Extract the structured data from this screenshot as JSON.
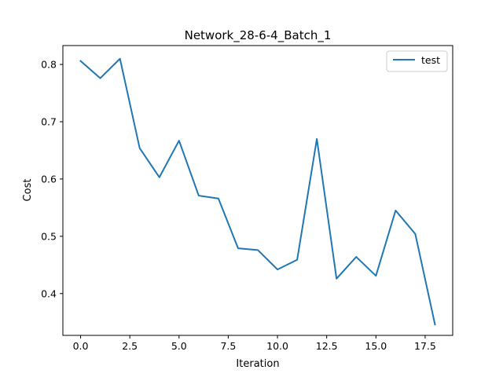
{
  "chart_data": {
    "type": "line",
    "title": "Network_28-6-4_Batch_1",
    "xlabel": "Iteration",
    "ylabel": "Cost",
    "xlim": [
      -0.9,
      18.9
    ],
    "ylim": [
      0.327,
      0.833
    ],
    "x_ticks": [
      0.0,
      2.5,
      5.0,
      7.5,
      10.0,
      12.5,
      15.0,
      17.5
    ],
    "x_tick_labels": [
      "0.0",
      "2.5",
      "5.0",
      "7.5",
      "10.0",
      "12.5",
      "15.0",
      "17.5"
    ],
    "y_ticks": [
      0.4,
      0.5,
      0.6,
      0.7,
      0.8
    ],
    "y_tick_labels": [
      "0.4",
      "0.5",
      "0.6",
      "0.7",
      "0.8"
    ],
    "grid": false,
    "legend_position": "top-right",
    "series": [
      {
        "name": "test",
        "color": "#1f77b4",
        "x": [
          0,
          1,
          2,
          3,
          4,
          5,
          6,
          7,
          8,
          9,
          10,
          11,
          12,
          13,
          14,
          15,
          16,
          17,
          18
        ],
        "values": [
          0.806,
          0.776,
          0.81,
          0.654,
          0.603,
          0.667,
          0.571,
          0.566,
          0.479,
          0.476,
          0.442,
          0.459,
          0.67,
          0.426,
          0.464,
          0.431,
          0.545,
          0.504,
          0.346
        ]
      }
    ]
  }
}
